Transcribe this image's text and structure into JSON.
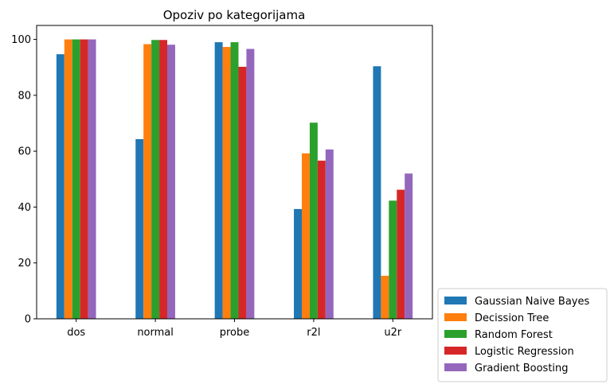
{
  "chart_data": {
    "type": "bar",
    "title": "Opoziv po kategorijama",
    "xlabel": "",
    "ylabel": "",
    "categories": [
      "dos",
      "normal",
      "probe",
      "r2l",
      "u2r"
    ],
    "ylim": [
      0,
      105
    ],
    "yticks": [
      0,
      20,
      40,
      60,
      80,
      100
    ],
    "grid": false,
    "legend_position": "lower-right-outside",
    "series": [
      {
        "name": "Gaussian Naive Bayes",
        "color": "#1f77b4",
        "values": [
          94.7,
          64.3,
          99.0,
          39.3,
          90.4
        ]
      },
      {
        "name": "Decission Tree",
        "color": "#ff7f0e",
        "values": [
          100.0,
          98.3,
          97.3,
          59.2,
          15.4
        ]
      },
      {
        "name": "Random Forest",
        "color": "#2ca02c",
        "values": [
          100.0,
          99.8,
          99.0,
          70.2,
          42.3
        ]
      },
      {
        "name": "Logistic Regression",
        "color": "#d62728",
        "values": [
          100.0,
          99.8,
          90.2,
          56.6,
          46.2
        ]
      },
      {
        "name": "Gradient Boosting",
        "color": "#9467bd",
        "values": [
          100.0,
          98.1,
          96.6,
          60.6,
          52.0
        ]
      }
    ]
  }
}
